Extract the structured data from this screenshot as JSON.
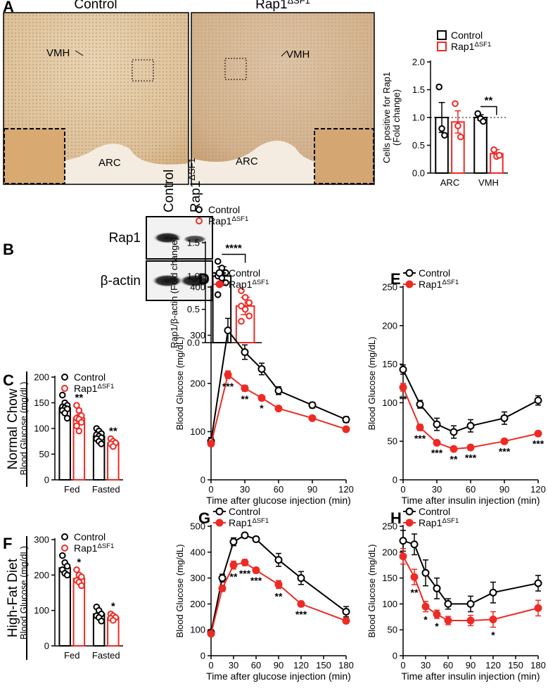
{
  "panels": {
    "letters": [
      "A",
      "B",
      "C",
      "D",
      "E",
      "F",
      "G",
      "H"
    ],
    "image_titles": [
      "Control",
      "Rap1ΔSF1"
    ],
    "image_labels": [
      "VMH",
      "ARC",
      "VMH",
      "ARC"
    ],
    "blot": {
      "lanes": [
        "Control",
        "Rap1ΔSF1"
      ],
      "rows": [
        "Rap1",
        "β-actin"
      ]
    },
    "row_labels": [
      "Normal Chow",
      "High-Fat Diet"
    ]
  },
  "chart_data": [
    {
      "type": "bar",
      "ylabel": [
        "Cells positive for Rap1",
        "(Fold change)"
      ],
      "categories": [
        "ARC",
        "VMH"
      ],
      "ylim": [
        0,
        2
      ],
      "yticks": [
        {
          "value": 0,
          "label": "0.0"
        },
        {
          "value": 0.5,
          "label": "0.5"
        },
        {
          "value": 1,
          "label": "1.0"
        },
        {
          "value": 1.5,
          "label": "1.5"
        },
        {
          "value": 2,
          "label": "2.0"
        }
      ],
      "hline": 1,
      "bracket": true,
      "legend": "top",
      "legend_marker": "square",
      "series": [
        {
          "name": "Control",
          "color": "#000000",
          "values": [
            1.0,
            1.0
          ],
          "errors": [
            0.27,
            0.05
          ],
          "points": [
            [
              1.55,
              0.8,
              0.68
            ],
            [
              1.07,
              0.98,
              0.93
            ]
          ]
        },
        {
          "name": "Rap1ΔSF1",
          "color": "#ee2a24",
          "values": [
            0.92,
            0.35
          ],
          "errors": [
            0.2,
            0.07
          ],
          "points": [
            [
              1.25,
              0.85,
              0.65
            ],
            [
              0.42,
              0.3,
              0.32
            ]
          ],
          "significance": [
            null,
            "**"
          ]
        }
      ]
    },
    {
      "type": "bar",
      "ylabel": [
        "Rap1/β-actin (Fold change)"
      ],
      "categories": [
        null
      ],
      "ylim": [
        0,
        1.5
      ],
      "yticks": [
        {
          "value": 0,
          "label": "0.0"
        },
        {
          "value": 0.5,
          "label": "0.5"
        },
        {
          "value": 1,
          "label": "1.0"
        },
        {
          "value": 1.5,
          "label": "1.5"
        }
      ],
      "bracket": true,
      "legend": "top",
      "legend_marker": "circle",
      "series": [
        {
          "name": "Control",
          "color": "#000000",
          "values": [
            1.0
          ],
          "errors": [
            0.14
          ],
          "points": [
            [
              1.22,
              1.12,
              1.05,
              1.0,
              0.97,
              0.9,
              0.72
            ]
          ]
        },
        {
          "name": "Rap1ΔSF1",
          "color": "#ee2a24",
          "values": [
            0.55
          ],
          "errors": [
            0.13
          ],
          "points": [
            [
              0.78,
              0.68,
              0.6,
              0.55,
              0.5,
              0.4,
              0.32
            ]
          ],
          "significance": [
            "****"
          ]
        }
      ]
    },
    {
      "type": "bar",
      "ylabel": [
        "Blood Glucose (mg/dL)"
      ],
      "categories": [
        "Fed",
        "Fasted"
      ],
      "ylim": [
        0,
        200
      ],
      "yticks": [
        0,
        50,
        100,
        150,
        200
      ],
      "legend": "top-left",
      "legend_marker": "circle",
      "series": [
        {
          "name": "Control",
          "color": "#000000",
          "values": [
            140,
            85
          ],
          "errors": [
            5,
            5
          ],
          "points": [
            [
              165,
              150,
              145,
              142,
              140,
              138,
              135,
              130,
              120
            ],
            [
              100,
              95,
              90,
              88,
              85,
              82,
              80,
              75,
              70
            ]
          ]
        },
        {
          "name": "Rap1ΔSF1",
          "color": "#ee2a24",
          "values": [
            120,
            72
          ],
          "errors": [
            7,
            4
          ],
          "points": [
            [
              145,
              135,
              125,
              120,
              118,
              112,
              105,
              95
            ],
            [
              80,
              75,
              72,
              70,
              65
            ]
          ],
          "significance": [
            "**",
            "**"
          ]
        }
      ]
    },
    {
      "type": "line",
      "ylabel": [
        "Blood Glucose (mg/dL)"
      ],
      "xlabel": "Time after glucose injection (min)",
      "x": [
        0,
        15,
        30,
        45,
        60,
        90,
        120
      ],
      "xlim": [
        0,
        120
      ],
      "xticks": [
        0,
        30,
        60,
        90,
        120
      ],
      "ylim": [
        0,
        400
      ],
      "yticks": [
        0,
        100,
        200,
        300,
        400
      ],
      "legend": "top-left",
      "series": [
        {
          "name": "Control",
          "color": "#000000",
          "filled": false,
          "values": [
            80,
            310,
            265,
            230,
            185,
            155,
            125
          ],
          "errors": [
            8,
            25,
            15,
            12,
            8,
            6,
            6
          ]
        },
        {
          "name": "Rap1ΔSF1",
          "color": "#ee2a24",
          "filled": true,
          "values": [
            75,
            218,
            190,
            170,
            148,
            128,
            105
          ],
          "errors": [
            5,
            8,
            6,
            5,
            4,
            4,
            4
          ],
          "significance": [
            null,
            "***",
            "**",
            "*",
            null,
            null,
            null
          ]
        }
      ]
    },
    {
      "type": "line",
      "ylabel": [
        "Blood Glucose (mg/dL)"
      ],
      "xlabel": "Time after insulin injection (min)",
      "x": [
        0,
        15,
        30,
        45,
        60,
        90,
        120
      ],
      "xlim": [
        0,
        120
      ],
      "xticks": [
        0,
        30,
        60,
        90,
        120
      ],
      "ylim": [
        0,
        250
      ],
      "yticks": [
        0,
        50,
        100,
        150,
        200,
        250
      ],
      "legend": "top-left",
      "series": [
        {
          "name": "Control",
          "color": "#000000",
          "filled": false,
          "values": [
            143,
            98,
            72,
            62,
            70,
            80,
            103
          ],
          "errors": [
            6,
            5,
            8,
            8,
            8,
            8,
            6
          ]
        },
        {
          "name": "Rap1ΔSF1",
          "color": "#ee2a24",
          "filled": true,
          "values": [
            120,
            68,
            48,
            40,
            42,
            50,
            60
          ],
          "errors": [
            5,
            4,
            3,
            3,
            3,
            3,
            3
          ],
          "significance": [
            "**",
            "***",
            "***",
            "**",
            "***",
            "***",
            "***"
          ]
        }
      ]
    },
    {
      "type": "bar",
      "ylabel": [
        "Blood Glucose (mg/dL)"
      ],
      "categories": [
        "Fed",
        "Fasted"
      ],
      "ylim": [
        0,
        300
      ],
      "yticks": [
        0,
        100,
        200,
        300
      ],
      "legend": "top-left",
      "legend_marker": "circle",
      "series": [
        {
          "name": "Control",
          "color": "#000000",
          "values": [
            220,
            90
          ],
          "errors": [
            10,
            8
          ],
          "points": [
            [
              255,
              235,
              225,
              215,
              205,
              200
            ],
            [
              110,
              100,
              90,
              85,
              80,
              70
            ]
          ]
        },
        {
          "name": "Rap1ΔSF1",
          "color": "#ee2a24",
          "values": [
            190,
            80
          ],
          "errors": [
            8,
            5
          ],
          "points": [
            [
              215,
              200,
              195,
              185,
              180,
              170
            ],
            [
              90,
              85,
              80,
              78,
              72
            ]
          ],
          "significance": [
            "*",
            "*"
          ]
        }
      ]
    },
    {
      "type": "line",
      "ylabel": [
        "Blood Glucose (mg/dL)"
      ],
      "xlabel": "Time after glucose injection (min)",
      "x": [
        0,
        15,
        30,
        45,
        60,
        90,
        120,
        180
      ],
      "xlim": [
        0,
        180
      ],
      "xticks": [
        0,
        30,
        60,
        90,
        120,
        150,
        180
      ],
      "ylim": [
        0,
        500
      ],
      "yticks": [
        0,
        100,
        200,
        300,
        400,
        500
      ],
      "legend": "top-left",
      "series": [
        {
          "name": "Control",
          "color": "#000000",
          "filled": false,
          "values": [
            90,
            300,
            440,
            465,
            450,
            370,
            300,
            170
          ],
          "errors": [
            10,
            15,
            15,
            10,
            10,
            25,
            25,
            20
          ]
        },
        {
          "name": "Rap1ΔSF1",
          "color": "#ee2a24",
          "filled": true,
          "values": [
            85,
            260,
            350,
            360,
            330,
            275,
            200,
            135
          ],
          "errors": [
            8,
            12,
            15,
            12,
            10,
            15,
            10,
            10
          ],
          "significance": [
            null,
            null,
            "**",
            "***",
            "***",
            "**",
            "***",
            null
          ]
        }
      ]
    },
    {
      "type": "line",
      "ylabel": [
        "Blood Glucose (mg/dL)"
      ],
      "xlabel": "Time after insulin injection (min)",
      "x": [
        0,
        15,
        30,
        45,
        60,
        90,
        120,
        180
      ],
      "xlim": [
        0,
        180
      ],
      "xticks": [
        0,
        30,
        60,
        90,
        120,
        150,
        180
      ],
      "ylim": [
        0,
        250
      ],
      "yticks": [
        0,
        50,
        100,
        150,
        200,
        250
      ],
      "legend": "top-left",
      "series": [
        {
          "name": "Control",
          "color": "#000000",
          "filled": false,
          "values": [
            222,
            215,
            160,
            130,
            100,
            100,
            122,
            140
          ],
          "errors": [
            20,
            20,
            25,
            20,
            10,
            15,
            20,
            15
          ]
        },
        {
          "name": "Rap1ΔSF1",
          "color": "#ee2a24",
          "filled": true,
          "values": [
            192,
            152,
            95,
            80,
            68,
            68,
            70,
            92
          ],
          "errors": [
            15,
            15,
            10,
            8,
            8,
            10,
            15,
            15
          ],
          "significance": [
            null,
            "**",
            "*",
            "*",
            null,
            null,
            "*",
            null
          ]
        }
      ]
    }
  ]
}
